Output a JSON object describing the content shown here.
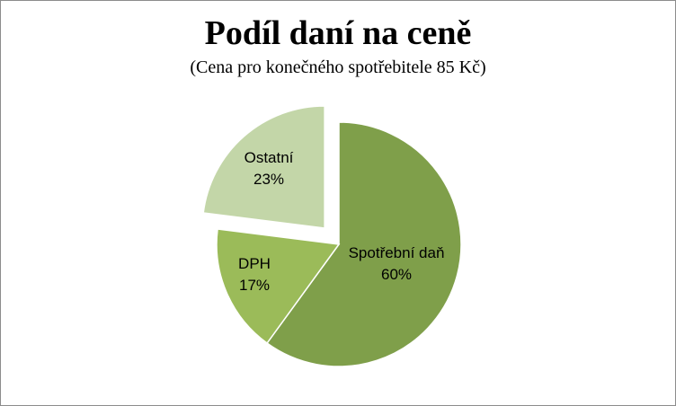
{
  "chart_data": {
    "type": "pie",
    "title": "Podíl daní na ceně",
    "subtitle": "(Cena pro konečného  spotřebitele 85 Kč)",
    "slices": [
      {
        "name": "Spotřební daň",
        "percent_label": "60%",
        "value": 60,
        "color": "#7f9f4a",
        "exploded": false
      },
      {
        "name": "DPH",
        "percent_label": "17%",
        "value": 17,
        "color": "#9bbb59",
        "exploded": false
      },
      {
        "name": "Ostatní",
        "percent_label": "23%",
        "value": 23,
        "color": "#c3d6a8",
        "exploded": true
      }
    ]
  }
}
